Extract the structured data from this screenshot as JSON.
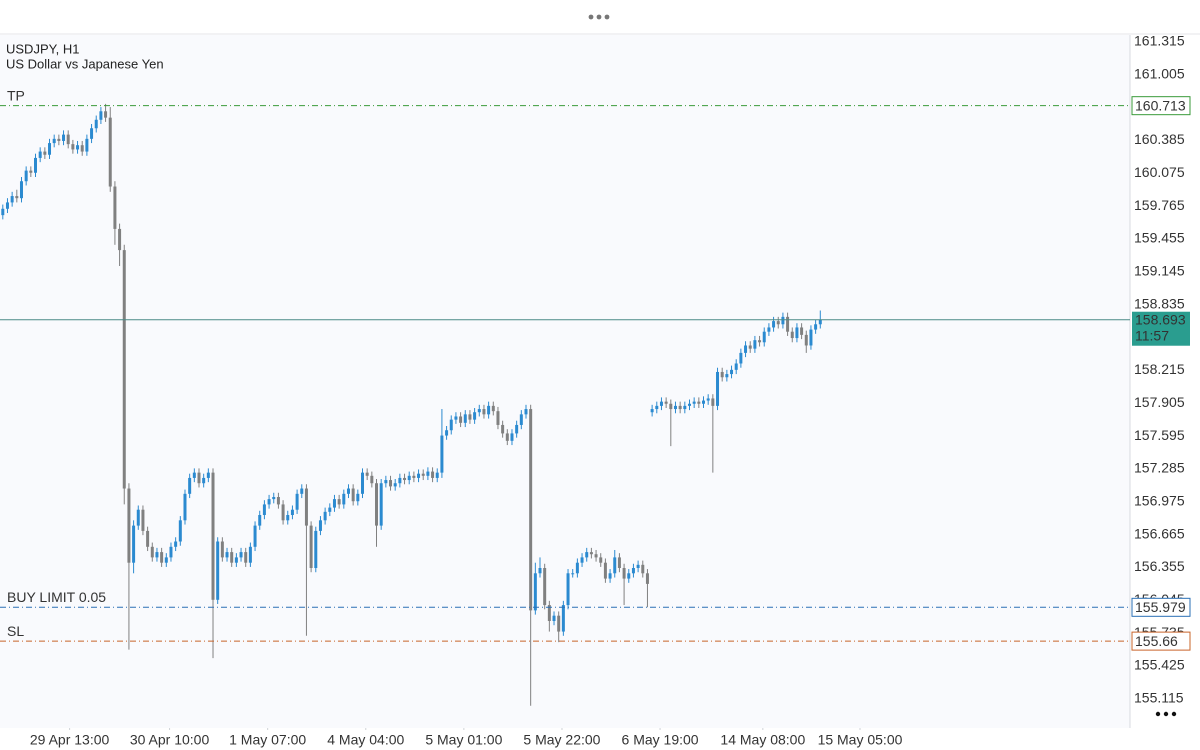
{
  "chart_data": {
    "type": "candlestick",
    "title": "USDJPY, H1",
    "subtitle": "US Dollar vs Japanese Yen",
    "up_color": "#2b8ad0",
    "down_color": "#808080",
    "ylim": [
      154.84,
      161.38
    ],
    "yticks": [
      161.315,
      161.005,
      160.385,
      160.075,
      159.765,
      159.455,
      159.145,
      158.835,
      158.215,
      157.905,
      157.595,
      157.285,
      156.975,
      156.665,
      156.355,
      156.045,
      155.735,
      155.425,
      155.115
    ],
    "xlim": [
      -0.6,
      241.3
    ],
    "xticks": [
      {
        "value": 14.3,
        "label": "29 Apr 13:00"
      },
      {
        "value": 35.7,
        "label": "30 Apr 10:00"
      },
      {
        "value": 56.7,
        "label": "1 May 07:00"
      },
      {
        "value": 77.7,
        "label": "4 May 04:00"
      },
      {
        "value": 98.7,
        "label": "5 May 01:00"
      },
      {
        "value": 119.7,
        "label": "5 May 22:00"
      },
      {
        "value": 140.7,
        "label": "6 May 19:00"
      },
      {
        "value": 162.7,
        "label": "14 May 08:00"
      },
      {
        "value": 183.5,
        "label": "15 May 05:00"
      }
    ],
    "levels": [
      {
        "label": "TP",
        "value": 160.713,
        "color": "#3a9a3a"
      },
      {
        "label": "BUY LIMIT 0.05",
        "value": 155.979,
        "color": "#2a6fb5"
      },
      {
        "label": "SL",
        "value": 155.66,
        "color": "#c8642a"
      }
    ],
    "last_price": {
      "value": 158.693,
      "timer": "11:57",
      "color": "#2a9d8f"
    },
    "ohlc": [
      [
        159.68,
        159.78,
        159.64,
        159.74
      ],
      [
        159.74,
        159.84,
        159.7,
        159.8
      ],
      [
        159.8,
        159.9,
        159.76,
        159.86
      ],
      [
        159.86,
        159.92,
        159.8,
        159.84
      ],
      [
        159.84,
        160.04,
        159.8,
        160.0
      ],
      [
        160.0,
        160.14,
        159.96,
        160.1
      ],
      [
        160.1,
        160.14,
        160.04,
        160.08
      ],
      [
        160.08,
        160.26,
        160.04,
        160.22
      ],
      [
        160.22,
        160.32,
        160.18,
        160.28
      ],
      [
        160.28,
        160.32,
        160.21,
        160.25
      ],
      [
        160.25,
        160.4,
        160.21,
        160.36
      ],
      [
        160.36,
        160.44,
        160.32,
        160.4
      ],
      [
        160.4,
        160.44,
        160.34,
        160.38
      ],
      [
        160.38,
        160.48,
        160.34,
        160.44
      ],
      [
        160.44,
        160.48,
        160.31,
        160.35
      ],
      [
        160.35,
        160.39,
        160.26,
        160.3
      ],
      [
        160.3,
        160.38,
        160.26,
        160.34
      ],
      [
        160.34,
        160.38,
        160.24,
        160.28
      ],
      [
        160.28,
        160.44,
        160.24,
        160.4
      ],
      [
        160.4,
        160.54,
        160.36,
        160.5
      ],
      [
        160.5,
        160.62,
        160.46,
        160.58
      ],
      [
        160.58,
        160.7,
        160.54,
        160.66
      ],
      [
        160.66,
        160.73,
        160.56,
        160.6
      ],
      [
        160.6,
        160.7,
        159.9,
        159.95
      ],
      [
        159.95,
        160.0,
        159.4,
        159.55
      ],
      [
        159.55,
        159.6,
        159.2,
        159.35
      ],
      [
        159.35,
        159.4,
        156.95,
        157.1
      ],
      [
        157.1,
        157.15,
        155.58,
        156.4
      ],
      [
        156.4,
        156.8,
        156.3,
        156.75
      ],
      [
        156.75,
        156.94,
        156.71,
        156.9
      ],
      [
        156.9,
        156.94,
        156.66,
        156.7
      ],
      [
        156.7,
        156.74,
        156.51,
        156.55
      ],
      [
        156.55,
        156.59,
        156.41,
        156.45
      ],
      [
        156.45,
        156.54,
        156.41,
        156.5
      ],
      [
        156.5,
        156.54,
        156.36,
        156.4
      ],
      [
        156.4,
        156.49,
        156.36,
        156.45
      ],
      [
        156.45,
        156.59,
        156.41,
        156.55
      ],
      [
        156.55,
        156.64,
        156.51,
        156.6
      ],
      [
        156.6,
        156.84,
        156.56,
        156.8
      ],
      [
        156.8,
        157.09,
        156.76,
        157.05
      ],
      [
        157.05,
        157.24,
        157.01,
        157.2
      ],
      [
        157.2,
        157.29,
        157.16,
        157.25
      ],
      [
        157.25,
        157.29,
        157.11,
        157.15
      ],
      [
        157.15,
        157.24,
        157.11,
        157.2
      ],
      [
        157.2,
        157.29,
        157.16,
        157.25
      ],
      [
        157.25,
        157.29,
        155.5,
        156.05
      ],
      [
        156.05,
        156.64,
        156.01,
        156.6
      ],
      [
        156.6,
        156.64,
        156.41,
        156.45
      ],
      [
        156.45,
        156.54,
        156.41,
        156.5
      ],
      [
        156.5,
        156.54,
        156.36,
        156.4
      ],
      [
        156.4,
        156.49,
        156.36,
        156.45
      ],
      [
        156.45,
        156.54,
        156.41,
        156.5
      ],
      [
        156.5,
        156.54,
        156.36,
        156.4
      ],
      [
        156.4,
        156.59,
        156.36,
        156.55
      ],
      [
        156.55,
        156.79,
        156.51,
        156.75
      ],
      [
        156.75,
        156.89,
        156.71,
        156.85
      ],
      [
        156.85,
        156.99,
        156.81,
        156.95
      ],
      [
        156.95,
        157.04,
        156.91,
        157.0
      ],
      [
        157.0,
        157.06,
        156.96,
        157.02
      ],
      [
        157.02,
        157.06,
        156.91,
        156.95
      ],
      [
        156.95,
        156.99,
        156.76,
        156.8
      ],
      [
        156.8,
        156.89,
        156.76,
        156.85
      ],
      [
        156.85,
        156.94,
        156.81,
        156.9
      ],
      [
        156.9,
        157.09,
        156.86,
        157.05
      ],
      [
        157.05,
        157.14,
        157.01,
        157.1
      ],
      [
        157.1,
        157.14,
        155.71,
        156.75
      ],
      [
        156.75,
        156.79,
        156.31,
        156.35
      ],
      [
        156.35,
        156.74,
        156.31,
        156.7
      ],
      [
        156.7,
        156.84,
        156.66,
        156.8
      ],
      [
        156.8,
        156.92,
        156.76,
        156.88
      ],
      [
        156.88,
        156.96,
        156.84,
        156.92
      ],
      [
        156.92,
        157.04,
        156.88,
        157.0
      ],
      [
        157.0,
        157.04,
        156.91,
        156.95
      ],
      [
        156.95,
        157.09,
        156.91,
        157.05
      ],
      [
        157.05,
        157.14,
        157.01,
        157.1
      ],
      [
        157.1,
        157.14,
        156.94,
        156.98
      ],
      [
        156.98,
        157.09,
        156.94,
        157.05
      ],
      [
        157.05,
        157.29,
        157.01,
        157.25
      ],
      [
        157.25,
        157.29,
        157.18,
        157.22
      ],
      [
        157.22,
        157.26,
        157.11,
        157.15
      ],
      [
        157.15,
        157.19,
        156.55,
        156.75
      ],
      [
        156.75,
        157.19,
        156.71,
        157.15
      ],
      [
        157.15,
        157.22,
        157.11,
        157.18
      ],
      [
        157.18,
        157.22,
        157.08,
        157.12
      ],
      [
        157.12,
        157.19,
        157.08,
        157.15
      ],
      [
        157.15,
        157.24,
        157.11,
        157.2
      ],
      [
        157.2,
        157.24,
        157.14,
        157.18
      ],
      [
        157.18,
        157.26,
        157.14,
        157.22
      ],
      [
        157.22,
        157.26,
        157.16,
        157.2
      ],
      [
        157.2,
        157.28,
        157.16,
        157.24
      ],
      [
        157.24,
        157.28,
        157.18,
        157.22
      ],
      [
        157.22,
        157.3,
        157.18,
        157.26
      ],
      [
        157.26,
        157.3,
        157.16,
        157.2
      ],
      [
        157.2,
        157.29,
        157.16,
        157.25
      ],
      [
        157.25,
        157.85,
        157.2,
        157.6
      ],
      [
        157.6,
        157.69,
        157.56,
        157.65
      ],
      [
        157.65,
        157.79,
        157.61,
        157.75
      ],
      [
        157.75,
        157.82,
        157.71,
        157.78
      ],
      [
        157.78,
        157.82,
        157.68,
        157.72
      ],
      [
        157.72,
        157.84,
        157.68,
        157.8
      ],
      [
        157.8,
        157.84,
        157.71,
        157.75
      ],
      [
        157.75,
        157.86,
        157.71,
        157.82
      ],
      [
        157.82,
        157.89,
        157.78,
        157.85
      ],
      [
        157.85,
        157.89,
        157.76,
        157.8
      ],
      [
        157.8,
        157.92,
        157.76,
        157.88
      ],
      [
        157.88,
        157.92,
        157.79,
        157.83
      ],
      [
        157.83,
        157.87,
        157.66,
        157.7
      ],
      [
        157.7,
        157.74,
        157.58,
        157.62
      ],
      [
        157.62,
        157.66,
        157.51,
        157.55
      ],
      [
        157.55,
        157.66,
        157.51,
        157.62
      ],
      [
        157.62,
        157.74,
        157.58,
        157.7
      ],
      [
        157.7,
        157.84,
        157.66,
        157.8
      ],
      [
        157.8,
        157.89,
        157.76,
        157.85
      ],
      [
        157.85,
        157.89,
        155.05,
        155.95
      ],
      [
        155.95,
        156.4,
        155.91,
        156.3
      ],
      [
        156.3,
        156.45,
        156.26,
        156.35
      ],
      [
        156.35,
        156.39,
        155.96,
        156.0
      ],
      [
        156.0,
        156.04,
        155.75,
        155.85
      ],
      [
        155.85,
        155.94,
        155.81,
        155.9
      ],
      [
        155.9,
        155.94,
        155.65,
        155.75
      ],
      [
        155.75,
        156.04,
        155.71,
        156.0
      ],
      [
        156.0,
        156.34,
        155.96,
        156.3
      ],
      [
        156.3,
        156.34,
        156.26,
        156.3
      ],
      [
        156.3,
        156.44,
        156.26,
        156.4
      ],
      [
        156.4,
        156.49,
        156.36,
        156.45
      ],
      [
        156.45,
        156.54,
        156.41,
        156.5
      ],
      [
        156.5,
        156.54,
        156.44,
        156.48
      ],
      [
        156.48,
        156.52,
        156.41,
        156.45
      ],
      [
        156.45,
        156.49,
        156.36,
        156.4
      ],
      [
        156.4,
        156.44,
        156.21,
        156.25
      ],
      [
        156.25,
        156.34,
        156.21,
        156.3
      ],
      [
        156.3,
        156.52,
        156.26,
        156.45
      ],
      [
        156.45,
        156.49,
        156.31,
        156.35
      ],
      [
        156.35,
        156.39,
        156.0,
        156.25
      ],
      [
        156.25,
        156.34,
        156.21,
        156.3
      ],
      [
        156.3,
        156.39,
        156.26,
        156.35
      ],
      [
        156.35,
        156.42,
        156.31,
        156.38
      ],
      [
        156.38,
        156.42,
        156.26,
        156.3
      ],
      [
        156.3,
        156.34,
        155.98,
        156.2
      ],
      [
        157.82,
        157.89,
        157.78,
        157.85
      ],
      [
        157.85,
        157.92,
        157.81,
        157.88
      ],
      [
        157.88,
        157.96,
        157.84,
        157.92
      ],
      [
        157.92,
        157.96,
        157.86,
        157.9
      ],
      [
        157.9,
        157.94,
        157.5,
        157.85
      ],
      [
        157.85,
        157.92,
        157.81,
        157.88
      ],
      [
        157.88,
        157.92,
        157.81,
        157.85
      ],
      [
        157.85,
        157.92,
        157.81,
        157.88
      ],
      [
        157.88,
        157.94,
        157.84,
        157.9
      ],
      [
        157.9,
        157.96,
        157.86,
        157.92
      ],
      [
        157.92,
        157.96,
        157.86,
        157.9
      ],
      [
        157.9,
        157.97,
        157.86,
        157.93
      ],
      [
        157.93,
        157.99,
        157.89,
        157.95
      ],
      [
        157.95,
        157.99,
        157.25,
        157.88
      ],
      [
        157.88,
        158.24,
        157.84,
        158.2
      ],
      [
        158.2,
        158.24,
        158.11,
        158.15
      ],
      [
        158.15,
        158.22,
        158.11,
        158.18
      ],
      [
        158.18,
        158.26,
        158.14,
        158.22
      ],
      [
        158.22,
        158.32,
        158.18,
        158.28
      ],
      [
        158.28,
        158.42,
        158.24,
        158.38
      ],
      [
        158.38,
        158.49,
        158.34,
        158.45
      ],
      [
        158.45,
        158.49,
        158.38,
        158.42
      ],
      [
        158.42,
        158.54,
        158.38,
        158.5
      ],
      [
        158.5,
        158.54,
        158.44,
        158.48
      ],
      [
        158.48,
        158.62,
        158.44,
        158.58
      ],
      [
        158.58,
        158.66,
        158.54,
        158.62
      ],
      [
        158.62,
        158.72,
        158.58,
        158.68
      ],
      [
        158.68,
        158.72,
        158.61,
        158.65
      ],
      [
        158.65,
        158.76,
        158.61,
        158.72
      ],
      [
        158.72,
        158.76,
        158.54,
        158.58
      ],
      [
        158.58,
        158.62,
        158.48,
        158.52
      ],
      [
        158.52,
        158.66,
        158.48,
        158.62
      ],
      [
        158.62,
        158.66,
        158.51,
        158.55
      ],
      [
        158.55,
        158.59,
        158.38,
        158.45
      ],
      [
        158.45,
        158.64,
        158.41,
        158.6
      ],
      [
        158.6,
        158.69,
        158.56,
        158.65
      ],
      [
        158.65,
        158.78,
        158.61,
        158.693
      ]
    ]
  }
}
